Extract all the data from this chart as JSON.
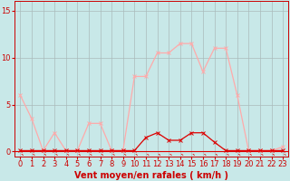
{
  "x": [
    0,
    1,
    2,
    3,
    4,
    5,
    6,
    7,
    8,
    9,
    10,
    11,
    12,
    13,
    14,
    15,
    16,
    17,
    18,
    19,
    20,
    21,
    22,
    23
  ],
  "rafales": [
    6,
    3.5,
    0.1,
    2,
    0.1,
    0.1,
    3,
    3,
    0.1,
    0.1,
    8,
    8,
    10.5,
    10.5,
    11.5,
    11.5,
    8.5,
    11,
    11,
    6,
    0.1,
    0.1,
    0.1,
    0.5
  ],
  "moyen": [
    0.1,
    0.1,
    0.1,
    0.1,
    0.1,
    0.1,
    0.1,
    0.1,
    0.1,
    0.1,
    0.1,
    1.5,
    2,
    1.2,
    1.2,
    2,
    2,
    1,
    0.1,
    0.1,
    0.1,
    0.1,
    0.1,
    0.1
  ],
  "bg_color": "#c8e8e8",
  "grid_color": "#aabbbb",
  "line_color_rafales": "#ffaaaa",
  "line_color_moyen": "#dd0000",
  "xlabel": "Vent moyen/en rafales ( km/h )",
  "yticks": [
    0,
    5,
    10,
    15
  ],
  "xlim": [
    -0.5,
    23.5
  ],
  "ylim": [
    -0.5,
    16
  ],
  "text_color": "#cc0000",
  "xlabel_fontsize": 7,
  "tick_fontsize": 6
}
